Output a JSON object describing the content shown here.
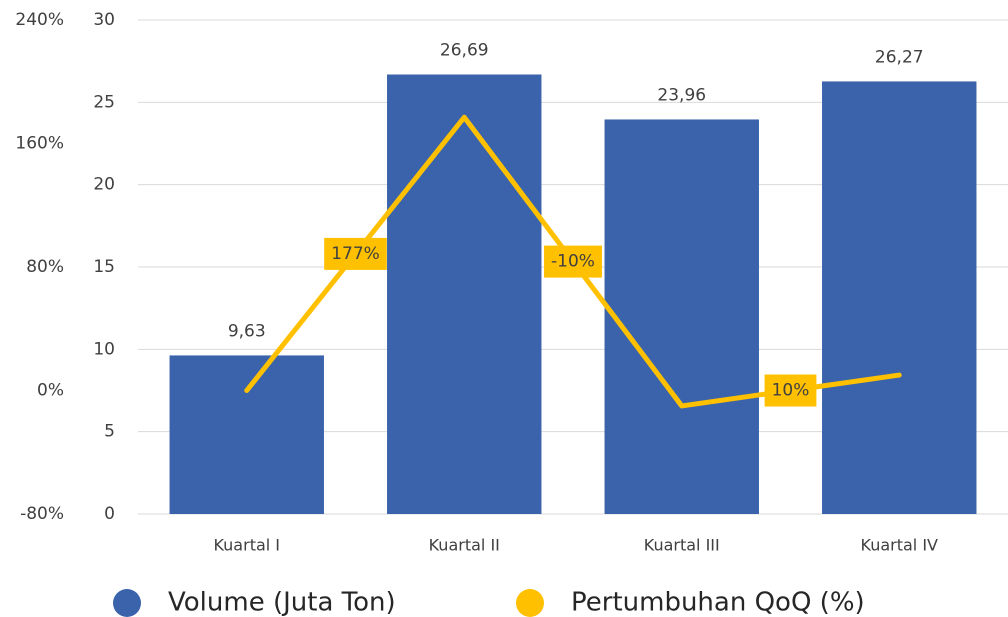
{
  "chart_data": {
    "type": "bar_line",
    "categories": [
      "Kuartal I",
      "Kuartal II",
      "Kuartal III",
      "Kuartal IV"
    ],
    "series": [
      {
        "name": "Volume (Juta Ton)",
        "color": "#3a63ab",
        "type": "bar",
        "values": [
          9.63,
          26.69,
          23.96,
          26.27
        ],
        "value_labels": [
          "9,63",
          "26,69",
          "23,96",
          "26,27"
        ]
      },
      {
        "name": "Pertumbuhan QoQ (%)",
        "color": "#ffc000",
        "type": "line",
        "axis": "y2",
        "values": [
          0,
          177,
          -10,
          10
        ],
        "value_labels": [
          null,
          "177%",
          "-10%",
          "10%"
        ]
      }
    ],
    "ylim": [
      0,
      30
    ],
    "yticks": [
      0,
      5,
      10,
      15,
      20,
      25,
      30
    ],
    "y2lim": [
      -80,
      240
    ],
    "y2ticks": [
      {
        "value": -80,
        "label": "-80%"
      },
      {
        "value": 0,
        "label": "0%"
      },
      {
        "value": 80,
        "label": "80%"
      },
      {
        "value": 160,
        "label": "160%"
      },
      {
        "value": 240,
        "label": "240%"
      }
    ],
    "grid": true,
    "legend": "bottom"
  }
}
